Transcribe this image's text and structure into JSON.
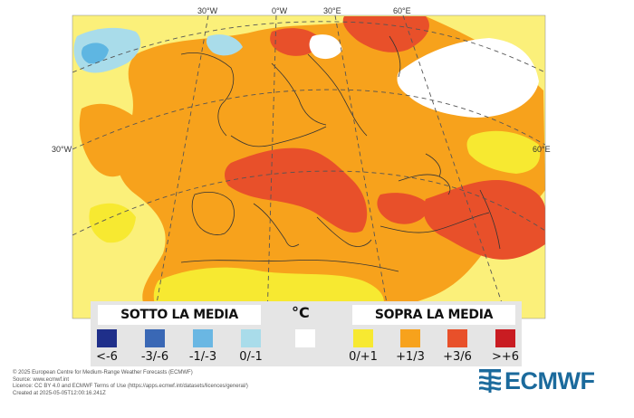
{
  "map": {
    "graticule_labels": {
      "lon_30w_top": "30°W",
      "lon_0_top": "0°W",
      "lon_30e_top": "30°E",
      "lon_60e_top": "60°E",
      "lat_left": "30°W",
      "lat_right": "60°E"
    },
    "colors": {
      "ocean_bg": "#fbf07a",
      "warm_1_3": "#f7a21c",
      "warm_3_6": "#e8502a",
      "white_0": "#ffffff",
      "cool_0_1": "#a9dcea",
      "cool_1_3": "#5eb6e2",
      "land_0_1": "#f7e931"
    }
  },
  "legend": {
    "below_label": "SOTTO LA MEDIA",
    "above_label": "SOPRA LA MEDIA",
    "unit": "°C",
    "classes": [
      {
        "label": "<-6",
        "color": "#1f2f8a"
      },
      {
        "label": "-3/-6",
        "color": "#3a68b5"
      },
      {
        "label": "-1/-3",
        "color": "#6ab7e3"
      },
      {
        "label": "0/-1",
        "color": "#a9dcea"
      },
      {
        "label": "",
        "color": "#ffffff"
      },
      {
        "label": "0/+1",
        "color": "#f7e931"
      },
      {
        "label": "+1/3",
        "color": "#f7a21c"
      },
      {
        "label": "+3/6",
        "color": "#e8502a"
      },
      {
        "label": ">+6",
        "color": "#c91c22"
      }
    ]
  },
  "credits": {
    "line1": "© 2025 European Centre for Medium-Range Weather Forecasts (ECMWF)",
    "line2": "Source: www.ecmwf.int",
    "line3": "Licence: CC BY 4.0 and ECMWF Terms of Use (https://apps.ecmwf.int/datasets/licences/general/)",
    "line4": "Created at 2025-05-05T12:00:16.241Z"
  },
  "logo": {
    "text": "ECMWF",
    "color": "#1b6a9c"
  }
}
